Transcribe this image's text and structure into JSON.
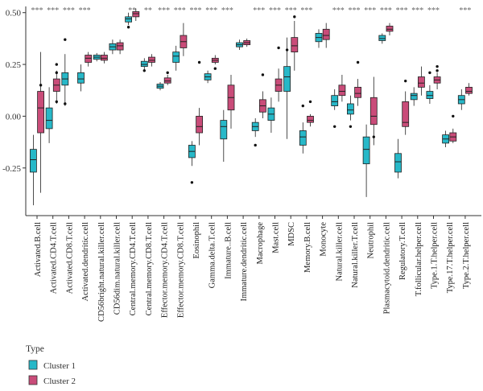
{
  "chart_data": {
    "type": "boxplot",
    "title": "",
    "xlabel": "",
    "ylabel": "",
    "ylim": [
      -0.48,
      0.53
    ],
    "yticks": [
      0.5,
      0.25,
      0.0,
      -0.25
    ],
    "ytick_labels": [
      "0.50",
      "0.25",
      "0.00",
      "-0.25"
    ],
    "grid": false,
    "legend_position": "bottom-left",
    "legend_title": "Type",
    "series": [
      {
        "name": "Cluster 1",
        "color": "#27b8c8"
      },
      {
        "name": "Cluster 2",
        "color": "#c94c79"
      }
    ],
    "categories": [
      "Activated.B.cell",
      "Activated.CD4.T.cell",
      "Activated.CD8.T.cell",
      "Activated.dendritic.cell",
      "CD56bright.natural.killer.cell",
      "CD56dim.natural.killer.cell",
      "Central.memory.CD4.T.cell",
      "Central.memory.CD8.T.cell",
      "Effector.memory.CD4.T.cell",
      "Effector.memory.CD8.T.cell",
      "Eosinophil",
      "Gamma.delta.T.cell",
      "Immature..B.cell",
      "Immature.dendritic.cell",
      "Macrophage",
      "Mast.cell",
      "MDSC",
      "Memory.B.cell",
      "Monocyte",
      "Natural.killer.cell",
      "Natural.killer.T.cell",
      "Neutrophil",
      "Plasmacytoid.dendritic.cell",
      "Regulatory.T.cell",
      "T.follicular.helper.cell",
      "Type.1.T.helper.cell",
      "Type.17.T.helper.cell",
      "Type.2.T.helper.cell"
    ],
    "significance": [
      "***",
      "***",
      "***",
      "***",
      "",
      "",
      "**",
      "**",
      "***",
      "***",
      "***",
      "***",
      "***",
      "",
      "***",
      "***",
      "***",
      "***",
      "",
      "***",
      "***",
      "***",
      "***",
      "***",
      "***",
      "***",
      "",
      "***"
    ],
    "boxes": [
      {
        "c1": {
          "wl": -0.43,
          "q1": -0.27,
          "med": -0.21,
          "q3": -0.16,
          "wh": -0.09,
          "out": []
        },
        "c2": {
          "wl": -0.37,
          "q1": -0.08,
          "med": 0.04,
          "q3": 0.12,
          "wh": 0.31,
          "out": [
            0.15
          ]
        }
      },
      {
        "c1": {
          "wl": -0.13,
          "q1": -0.06,
          "med": -0.02,
          "q3": 0.04,
          "wh": 0.14,
          "out": []
        },
        "c2": {
          "wl": 0.06,
          "q1": 0.12,
          "med": 0.15,
          "q3": 0.18,
          "wh": 0.22,
          "out": [
            0.25,
            0.21,
            0.07
          ]
        }
      },
      {
        "c1": {
          "wl": 0.05,
          "q1": 0.15,
          "med": 0.18,
          "q3": 0.21,
          "wh": 0.3,
          "out": [
            0.37,
            0.06
          ]
        }
      },
      {
        "c1": {
          "wl": 0.12,
          "q1": 0.16,
          "med": 0.18,
          "q3": 0.21,
          "wh": 0.25,
          "out": []
        },
        "c2": {
          "wl": 0.24,
          "q1": 0.26,
          "med": 0.28,
          "q3": 0.295,
          "wh": 0.31,
          "out": []
        }
      },
      {
        "c1": {
          "wl": 0.265,
          "q1": 0.275,
          "med": 0.285,
          "q3": 0.295,
          "wh": 0.305,
          "out": []
        },
        "c2": {
          "wl": 0.255,
          "q1": 0.27,
          "med": 0.28,
          "q3": 0.295,
          "wh": 0.31,
          "out": []
        }
      },
      {
        "c1": {
          "wl": 0.3,
          "q1": 0.32,
          "med": 0.335,
          "q3": 0.35,
          "wh": 0.37,
          "out": []
        },
        "c2": {
          "wl": 0.3,
          "q1": 0.32,
          "med": 0.34,
          "q3": 0.355,
          "wh": 0.37,
          "out": []
        }
      },
      {
        "c1": {
          "wl": 0.44,
          "q1": 0.455,
          "med": 0.47,
          "q3": 0.48,
          "wh": 0.5,
          "out": [
            0.43
          ]
        },
        "c2": {
          "wl": 0.46,
          "q1": 0.48,
          "med": 0.495,
          "q3": 0.505,
          "wh": 0.52,
          "out": []
        }
      },
      {
        "c1": {
          "wl": 0.22,
          "q1": 0.24,
          "med": 0.25,
          "q3": 0.265,
          "wh": 0.28,
          "out": [
            0.22
          ]
        },
        "c2": {
          "wl": 0.24,
          "q1": 0.26,
          "med": 0.27,
          "q3": 0.285,
          "wh": 0.3,
          "out": []
        }
      },
      {
        "c1": {
          "wl": 0.125,
          "q1": 0.135,
          "med": 0.145,
          "q3": 0.155,
          "wh": 0.165,
          "out": []
        },
        "c2": {
          "wl": 0.15,
          "q1": 0.16,
          "med": 0.17,
          "q3": 0.185,
          "wh": 0.2,
          "out": [
            0.21
          ]
        }
      },
      {
        "c1": {
          "wl": 0.22,
          "q1": 0.26,
          "med": 0.29,
          "q3": 0.31,
          "wh": 0.34,
          "out": []
        },
        "c2": {
          "wl": 0.29,
          "q1": 0.33,
          "med": 0.36,
          "q3": 0.39,
          "wh": 0.45,
          "out": []
        }
      },
      {
        "c1": {
          "wl": -0.24,
          "q1": -0.2,
          "med": -0.17,
          "q3": -0.14,
          "wh": -0.12,
          "out": [
            -0.32
          ]
        },
        "c2": {
          "wl": -0.14,
          "q1": -0.08,
          "med": -0.05,
          "q3": 0.0,
          "wh": 0.04,
          "out": [
            0.26
          ]
        }
      },
      {
        "c1": {
          "wl": 0.16,
          "q1": 0.175,
          "med": 0.19,
          "q3": 0.205,
          "wh": 0.22,
          "out": []
        },
        "c2": {
          "wl": 0.25,
          "q1": 0.26,
          "med": 0.27,
          "q3": 0.28,
          "wh": 0.295,
          "out": [
            0.23
          ]
        }
      },
      {
        "c1": {
          "wl": -0.22,
          "q1": -0.11,
          "med": -0.05,
          "q3": -0.02,
          "wh": 0.03,
          "out": []
        },
        "c2": {
          "wl": -0.06,
          "q1": 0.03,
          "med": 0.09,
          "q3": 0.15,
          "wh": 0.2,
          "out": []
        }
      },
      {
        "c1": {
          "wl": 0.32,
          "q1": 0.335,
          "med": 0.345,
          "q3": 0.355,
          "wh": 0.37,
          "out": []
        },
        "c2": {
          "wl": 0.335,
          "q1": 0.345,
          "med": 0.355,
          "q3": 0.365,
          "wh": 0.375,
          "out": []
        }
      },
      {
        "c1": {
          "wl": -0.1,
          "q1": -0.07,
          "med": -0.05,
          "q3": -0.03,
          "wh": -0.01,
          "out": [
            -0.14
          ]
        },
        "c2": {
          "wl": -0.01,
          "q1": 0.02,
          "med": 0.05,
          "q3": 0.08,
          "wh": 0.12,
          "out": [
            0.2
          ]
        }
      },
      {
        "c1": {
          "wl": -0.08,
          "q1": -0.02,
          "med": 0.01,
          "q3": 0.04,
          "wh": 0.09,
          "out": []
        },
        "c2": {
          "wl": 0.07,
          "q1": 0.12,
          "med": 0.15,
          "q3": 0.18,
          "wh": 0.23,
          "out": [
            0.33
          ]
        }
      },
      {
        "c1": {
          "wl": -0.11,
          "q1": 0.12,
          "med": 0.19,
          "q3": 0.24,
          "wh": 0.38,
          "out": [
            0.32
          ]
        },
        "c2": {
          "wl": 0.22,
          "q1": 0.31,
          "med": 0.34,
          "q3": 0.38,
          "wh": 0.46,
          "out": [
            0.48
          ]
        }
      },
      {
        "c1": {
          "wl": -0.18,
          "q1": -0.14,
          "med": -0.1,
          "q3": -0.07,
          "wh": -0.03,
          "out": [
            0.05
          ]
        },
        "c2": {
          "wl": -0.05,
          "q1": -0.03,
          "med": -0.02,
          "q3": 0.0,
          "wh": 0.01,
          "out": [
            0.07
          ]
        }
      },
      {
        "c1": {
          "wl": 0.33,
          "q1": 0.36,
          "med": 0.38,
          "q3": 0.4,
          "wh": 0.42,
          "out": []
        },
        "c2": {
          "wl": 0.33,
          "q1": 0.37,
          "med": 0.39,
          "q3": 0.42,
          "wh": 0.45,
          "out": []
        }
      },
      {
        "c1": {
          "wl": 0.03,
          "q1": 0.05,
          "med": 0.07,
          "q3": 0.1,
          "wh": 0.13,
          "out": [
            -0.05
          ]
        },
        "c2": {
          "wl": 0.07,
          "q1": 0.1,
          "med": 0.12,
          "q3": 0.15,
          "wh": 0.2,
          "out": []
        }
      },
      {
        "c1": {
          "wl": -0.02,
          "q1": 0.01,
          "med": 0.03,
          "q3": 0.06,
          "wh": 0.1,
          "out": [
            -0.05
          ]
        },
        "c2": {
          "wl": 0.05,
          "q1": 0.09,
          "med": 0.11,
          "q3": 0.14,
          "wh": 0.18,
          "out": [
            0.26
          ]
        }
      },
      {
        "c1": {
          "wl": -0.39,
          "q1": -0.23,
          "med": -0.16,
          "q3": -0.1,
          "wh": -0.04,
          "out": []
        },
        "c2": {
          "wl": -0.14,
          "q1": -0.04,
          "med": 0.0,
          "q3": 0.09,
          "wh": 0.19,
          "out": [
            -0.1
          ]
        }
      },
      {
        "c1": {
          "wl": 0.35,
          "q1": 0.365,
          "med": 0.375,
          "q3": 0.39,
          "wh": 0.4,
          "out": []
        },
        "c2": {
          "wl": 0.39,
          "q1": 0.41,
          "med": 0.42,
          "q3": 0.435,
          "wh": 0.45,
          "out": []
        }
      },
      {
        "c1": {
          "wl": -0.3,
          "q1": -0.27,
          "med": -0.22,
          "q3": -0.18,
          "wh": -0.11,
          "out": []
        },
        "c2": {
          "wl": -0.09,
          "q1": -0.05,
          "med": -0.03,
          "q3": 0.07,
          "wh": 0.12,
          "out": [
            0.17
          ]
        }
      },
      {
        "c1": {
          "wl": 0.05,
          "q1": 0.08,
          "med": 0.1,
          "q3": 0.11,
          "wh": 0.14,
          "out": []
        },
        "c2": {
          "wl": 0.1,
          "q1": 0.14,
          "med": 0.16,
          "q3": 0.19,
          "wh": 0.24,
          "out": []
        }
      },
      {
        "c1": {
          "wl": 0.06,
          "q1": 0.085,
          "med": 0.1,
          "q3": 0.12,
          "wh": 0.15,
          "out": [
            0.21
          ]
        },
        "c2": {
          "wl": 0.13,
          "q1": 0.16,
          "med": 0.175,
          "q3": 0.19,
          "wh": 0.21,
          "out": [
            0.22,
            0.24
          ]
        }
      },
      {
        "c1": {
          "wl": -0.15,
          "q1": -0.13,
          "med": -0.11,
          "q3": -0.09,
          "wh": -0.07,
          "out": []
        },
        "c2": {
          "wl": -0.13,
          "q1": -0.12,
          "med": -0.1,
          "q3": -0.08,
          "wh": -0.06,
          "out": [
            0.0
          ]
        }
      },
      {
        "c1": {
          "wl": 0.03,
          "q1": 0.06,
          "med": 0.08,
          "q3": 0.1,
          "wh": 0.13,
          "out": []
        },
        "c2": {
          "wl": 0.1,
          "q1": 0.11,
          "med": 0.12,
          "q3": 0.14,
          "wh": 0.16,
          "out": []
        }
      }
    ]
  }
}
